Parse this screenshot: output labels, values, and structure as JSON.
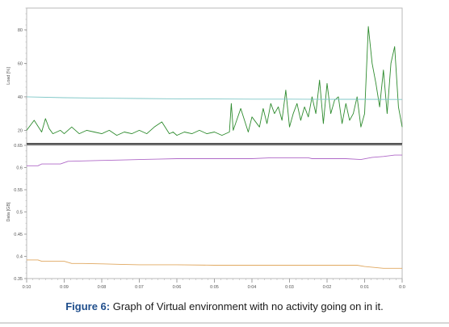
{
  "caption": {
    "label": "Figure 6:",
    "text": " Graph of Virtual environment with no activity going on in it."
  },
  "chart_data": [
    {
      "type": "line",
      "ylabel": "Load [%]",
      "ylim": [
        12,
        93
      ],
      "y_ticks": [
        "20",
        "40",
        "60",
        "80"
      ],
      "x_ticks": [
        "0:10",
        "0:09",
        "0:08",
        "0:07",
        "0:06",
        "0:05",
        "0:04",
        "0:03",
        "0:02",
        "0:01",
        "0:0"
      ],
      "x_range": [
        0,
        10
      ],
      "grid": false,
      "series": [
        {
          "color": "#2e8b2e",
          "x": [
            0,
            0.2,
            0.4,
            0.5,
            0.6,
            0.7,
            0.9,
            1.0,
            1.2,
            1.4,
            1.6,
            1.8,
            2.0,
            2.2,
            2.4,
            2.6,
            2.8,
            3.0,
            3.2,
            3.4,
            3.6,
            3.8,
            3.9,
            4.0,
            4.2,
            4.4,
            4.6,
            4.8,
            5.0,
            5.2,
            5.4,
            5.45,
            5.5,
            5.7,
            5.9,
            6.0,
            6.2,
            6.3,
            6.4,
            6.5,
            6.6,
            6.7,
            6.8,
            6.9,
            7.0,
            7.1,
            7.2,
            7.3,
            7.4,
            7.5,
            7.6,
            7.7,
            7.8,
            7.9,
            8.0,
            8.1,
            8.2,
            8.3,
            8.4,
            8.5,
            8.6,
            8.7,
            8.8,
            8.9,
            9.0,
            9.1,
            9.2,
            9.3,
            9.4,
            9.5,
            9.6,
            9.7,
            9.8,
            9.9,
            10.0
          ],
          "values": [
            20,
            26,
            19,
            27,
            21,
            18,
            20,
            18,
            22,
            18,
            20,
            19,
            18,
            20,
            17,
            19,
            18,
            20,
            18,
            22,
            25,
            18,
            19,
            17,
            19,
            18,
            20,
            18,
            19,
            17,
            19,
            36,
            20,
            33,
            19,
            28,
            22,
            33,
            24,
            36,
            30,
            34,
            26,
            44,
            22,
            30,
            36,
            26,
            34,
            28,
            40,
            30,
            50,
            24,
            48,
            30,
            38,
            40,
            24,
            36,
            26,
            30,
            40,
            22,
            30,
            82,
            60,
            48,
            34,
            56,
            30,
            60,
            70,
            34,
            22
          ]
        },
        {
          "color": "#7fc7c7",
          "x": [
            0,
            1,
            2,
            3,
            4,
            5,
            6,
            7,
            8,
            9,
            10
          ],
          "values": [
            40,
            39.5,
            39.2,
            39.0,
            38.8,
            38.7,
            38.6,
            38.6,
            38.5,
            38.5,
            38.4
          ]
        }
      ]
    },
    {
      "type": "line",
      "ylabel": "Data [GB]",
      "ylim": [
        0.35,
        0.65
      ],
      "y_ticks": [
        "0.35",
        "0.4",
        "0.45",
        "0.5",
        "0.55",
        "0.6",
        "0.65"
      ],
      "x_ticks": [
        "0:10",
        "0:09",
        "0:08",
        "0:07",
        "0:06",
        "0:05",
        "0:04",
        "0:03",
        "0:02",
        "0:01",
        "0:0"
      ],
      "x_range": [
        0,
        10
      ],
      "grid": false,
      "series": [
        {
          "color": "#b06ac8",
          "x": [
            0,
            0.3,
            0.4,
            0.9,
            1.1,
            1.5,
            2.0,
            2.5,
            3.0,
            3.5,
            4.0,
            4.5,
            5.0,
            5.5,
            6.0,
            6.5,
            7.0,
            7.5,
            7.6,
            8.0,
            8.5,
            8.9,
            9.2,
            9.5,
            9.8,
            10.0
          ],
          "values": [
            0.604,
            0.604,
            0.608,
            0.608,
            0.614,
            0.615,
            0.616,
            0.617,
            0.618,
            0.619,
            0.62,
            0.62,
            0.62,
            0.62,
            0.62,
            0.622,
            0.622,
            0.622,
            0.62,
            0.62,
            0.62,
            0.618,
            0.623,
            0.625,
            0.628,
            0.628
          ]
        },
        {
          "color": "#e0a860",
          "x": [
            0,
            0.3,
            0.4,
            1.0,
            1.2,
            1.5,
            2.0,
            2.5,
            3.0,
            4.0,
            5.0,
            6.0,
            7.0,
            8.0,
            8.8,
            9.0,
            9.5,
            10.0
          ],
          "values": [
            0.392,
            0.392,
            0.389,
            0.389,
            0.384,
            0.384,
            0.383,
            0.382,
            0.381,
            0.381,
            0.38,
            0.38,
            0.38,
            0.38,
            0.38,
            0.377,
            0.373,
            0.373
          ]
        }
      ]
    }
  ]
}
